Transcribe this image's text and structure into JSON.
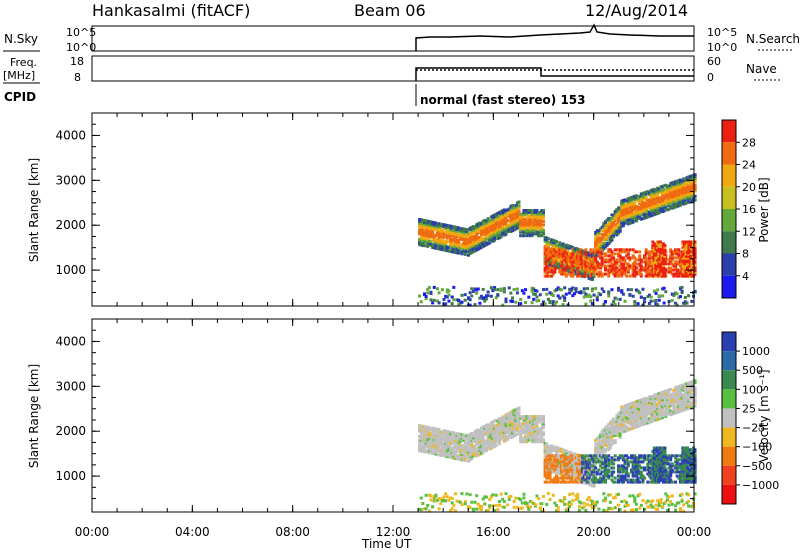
{
  "header": {
    "site": "Hankasalmi (fitACF)",
    "beam": "Beam 06",
    "date": "12/Aug/2014"
  },
  "strips": {
    "nsky": {
      "label": "N.Sky",
      "left_ticks": [
        "10^5",
        "10^0"
      ],
      "right_ticks": [
        "10^5",
        "10^0"
      ],
      "right_label": "N.Search"
    },
    "freq": {
      "label": "Freq.",
      "unit": "[MHz]",
      "left_ticks": [
        "18",
        "8"
      ],
      "right_ticks": [
        "60",
        "0"
      ],
      "right_label": "Nave"
    },
    "cpid": {
      "label": "CPID",
      "value": "normal (fast stereo) 153"
    }
  },
  "x_axis": {
    "label": "Time UT",
    "ticks": [
      "00:00",
      "04:00",
      "08:00",
      "12:00",
      "16:00",
      "20:00",
      "00:00"
    ]
  },
  "colors": {
    "power": [
      "#1a1aee",
      "#2a3faa",
      "#3e7a4a",
      "#63a83a",
      "#c9c020",
      "#f0a810",
      "#f06a10",
      "#ec2010"
    ],
    "velocity": [
      "#2a3fb0",
      "#2a6aa8",
      "#3a8a50",
      "#58c040",
      "#c0c0c0",
      "#f0b820",
      "#f07a10",
      "#f04020",
      "#ec1010"
    ]
  },
  "chart_data": [
    {
      "type": "line",
      "title": "N.Sky / N.Search",
      "x": [
        "13:00",
        "14:00",
        "16:00",
        "18:00",
        "19:00",
        "20:00",
        "20:30",
        "21:00",
        "22:00",
        "23:00",
        "00:00"
      ],
      "series": [
        {
          "name": "N.Sky",
          "values": [
            3.0,
            3.1,
            3.2,
            3.2,
            3.5,
            3.7,
            4.6,
            3.6,
            3.4,
            3.3,
            3.3
          ]
        }
      ]
    },
    {
      "type": "line",
      "title": "Freq. / Nave",
      "x": [
        "13:00",
        "18:00",
        "18:00",
        "00:00"
      ],
      "series": [
        {
          "name": "Freq.",
          "values": [
            12.7,
            12.7,
            10.5,
            10.5
          ]
        },
        {
          "name": "Nave",
          "values": [
            42,
            42,
            42,
            42
          ]
        }
      ]
    },
    {
      "type": "heatmap",
      "title": "Power",
      "xlabel": "Time UT",
      "ylabel": "Slant Range [km]",
      "xlim": [
        "00:00",
        "00:00"
      ],
      "ylim": [
        200,
        4500
      ],
      "yticks": [
        "1000",
        "2000",
        "3000",
        "4000"
      ],
      "colorbar": {
        "label": "Power [dB]",
        "ticks": [
          "4",
          "8",
          "12",
          "16",
          "20",
          "24",
          "28"
        ]
      }
    },
    {
      "type": "heatmap",
      "title": "Velocity",
      "xlabel": "Time UT",
      "ylabel": "Slant Range [km]",
      "xlim": [
        "00:00",
        "00:00"
      ],
      "ylim": [
        200,
        4500
      ],
      "yticks": [
        "1000",
        "2000",
        "3000",
        "4000"
      ],
      "colorbar": {
        "label": "Velocity [m s⁻¹]",
        "ticks": [
          "1000",
          "500",
          "100",
          "25",
          "−25",
          "−100",
          "−500",
          "−1000"
        ]
      }
    }
  ]
}
